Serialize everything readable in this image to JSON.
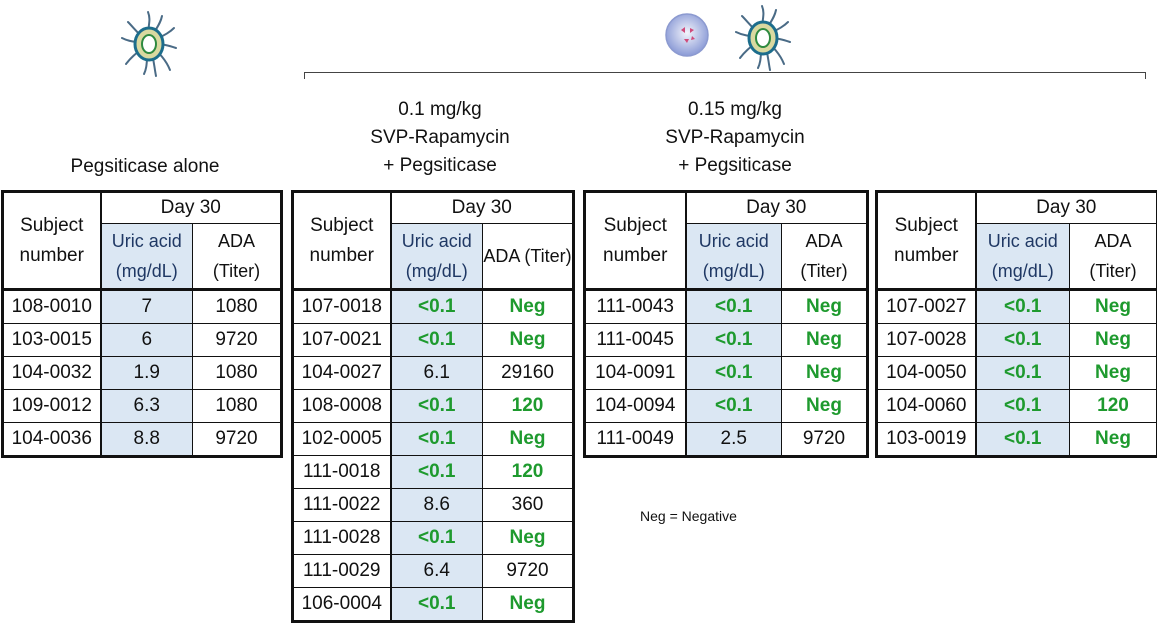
{
  "legend": "Neg = Negative",
  "groups": [
    {
      "title": [
        "Pegsiticase alone"
      ],
      "header": {
        "subject": "Subject number",
        "day": "Day 30",
        "uric": "Uric acid (mg/dL)",
        "ada": "ADA (Titer)"
      },
      "rows": [
        {
          "subject": "108-0010",
          "uric": "7",
          "ada": "1080"
        },
        {
          "subject": "103-0015",
          "uric": "6",
          "ada": "9720"
        },
        {
          "subject": "104-0032",
          "uric": "1.9",
          "ada": "1080"
        },
        {
          "subject": "109-0012",
          "uric": "6.3",
          "ada": "1080"
        },
        {
          "subject": "104-0036",
          "uric": "8.8",
          "ada": "9720"
        }
      ]
    },
    {
      "title": [
        "0.1 mg/kg",
        "SVP-Rapamycin",
        "+ Pegsiticase"
      ],
      "header": {
        "subject": "Subject number",
        "day": "Day 30",
        "uric": "Uric acid (mg/dL)",
        "ada": "ADA (Titer)"
      },
      "rows": [
        {
          "subject": "107-0018",
          "uric": "<0.1",
          "ada": "Neg"
        },
        {
          "subject": "107-0021",
          "uric": "<0.1",
          "ada": "Neg"
        },
        {
          "subject": "104-0027",
          "uric": "6.1",
          "ada": "29160"
        },
        {
          "subject": "108-0008",
          "uric": "<0.1",
          "ada": "120"
        },
        {
          "subject": "102-0005",
          "uric": "<0.1",
          "ada": "Neg"
        },
        {
          "subject": "111-0018",
          "uric": "<0.1",
          "ada": "120"
        },
        {
          "subject": "111-0022",
          "uric": "8.6",
          "ada": "360"
        },
        {
          "subject": "111-0028",
          "uric": "<0.1",
          "ada": "Neg"
        },
        {
          "subject": "111-0029",
          "uric": "6.4",
          "ada": "9720"
        },
        {
          "subject": "106-0004",
          "uric": "<0.1",
          "ada": "Neg"
        }
      ]
    },
    {
      "title": [
        "0.15 mg/kg",
        "SVP-Rapamycin",
        "+ Pegsiticase"
      ],
      "header": {
        "subject": "Subject number",
        "day": "Day 30",
        "uric": "Uric acid (mg/dL)",
        "ada": "ADA (Titer)"
      },
      "rows": [
        {
          "subject": "111-0043",
          "uric": "<0.1",
          "ada": "Neg"
        },
        {
          "subject": "111-0045",
          "uric": "<0.1",
          "ada": "Neg"
        },
        {
          "subject": "104-0091",
          "uric": "<0.1",
          "ada": "Neg"
        },
        {
          "subject": "104-0094",
          "uric": "<0.1",
          "ada": "Neg"
        },
        {
          "subject": "111-0049",
          "uric": "2.5",
          "ada": "9720"
        }
      ]
    },
    {
      "title": [],
      "header": {
        "subject": "Subject number",
        "day": "Day 30",
        "uric": "Uric acid (mg/dL)",
        "ada": "ADA (Titer)"
      },
      "rows": [
        {
          "subject": "107-0027",
          "uric": "<0.1",
          "ada": "Neg"
        },
        {
          "subject": "107-0028",
          "uric": "<0.1",
          "ada": "Neg"
        },
        {
          "subject": "104-0050",
          "uric": "<0.1",
          "ada": "Neg"
        },
        {
          "subject": "104-0060",
          "uric": "<0.1",
          "ada": "120"
        },
        {
          "subject": "103-0019",
          "uric": "<0.1",
          "ada": "Neg"
        }
      ]
    }
  ],
  "colors": {
    "green": "#1e9a2e",
    "uric_bg": "#dbe7f3"
  }
}
